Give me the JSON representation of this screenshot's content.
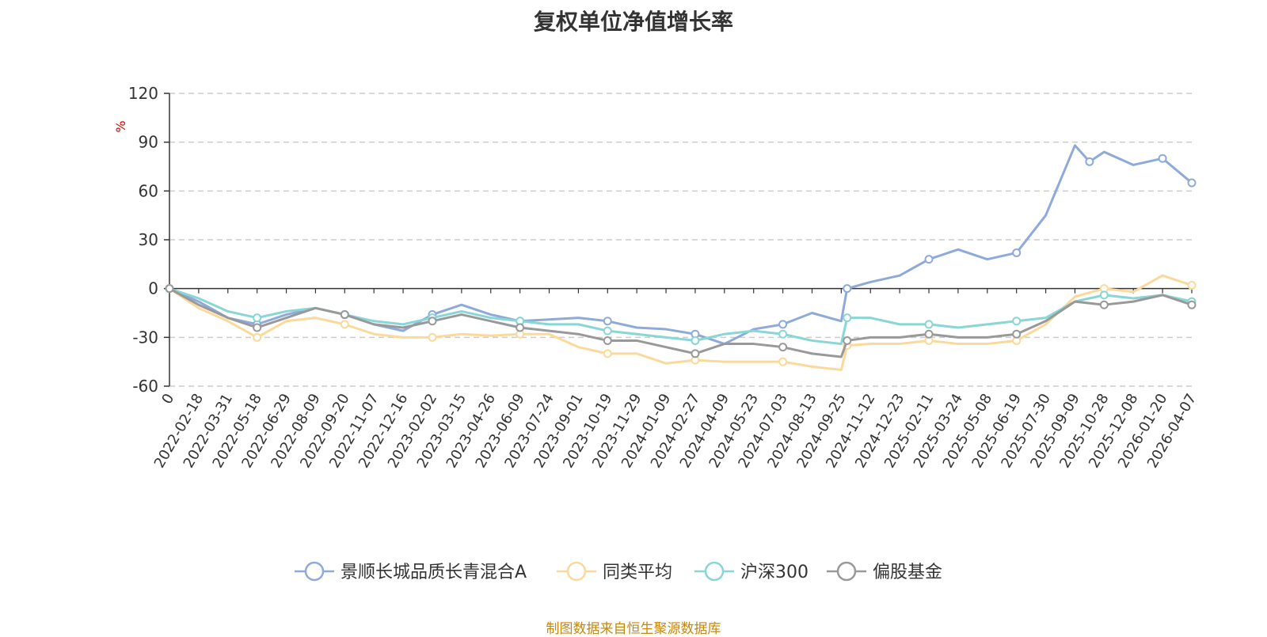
{
  "title": "复权单位净值增长率",
  "source": "制图数据来自恒生聚源数据库",
  "chart_data": {
    "type": "line",
    "y_unit": "%",
    "ylim": [
      -60,
      120
    ],
    "y_ticks": [
      "120",
      "90",
      "60",
      "30",
      "0",
      "-30",
      "-60"
    ],
    "x_tick_labels": [
      "0",
      "2022-02-18",
      "2022-03-31",
      "2022-05-18",
      "2022-06-29",
      "2022-08-09",
      "2022-09-20",
      "2022-11-07",
      "2022-12-16",
      "2023-02-02",
      "2023-03-15",
      "2023-04-26",
      "2023-06-09",
      "2023-07-24",
      "2023-09-01",
      "2023-10-19",
      "2023-11-29",
      "2024-01-09",
      "2024-02-27",
      "2024-04-09",
      "2024-05-23",
      "2024-07-03",
      "2024-08-13",
      "2024-09-25",
      "2024-11-12",
      "2024-12-23",
      "2025-02-11",
      "2025-03-24",
      "2025-05-08",
      "2025-06-19",
      "2025-07-30",
      "2025-09-09",
      "2025-10-28",
      "2025-12-08",
      "2026-01-20",
      "2026-04-07"
    ],
    "grid": "horizontal-dashed",
    "legend_position": "bottom",
    "series": [
      {
        "name": "景顺长城品质长青混合A",
        "color": "#8eaadb",
        "x": [
          0,
          1,
          2,
          3,
          4,
          5,
          6,
          7,
          8,
          9,
          10,
          11,
          12,
          13,
          14,
          15,
          16,
          17,
          18,
          19,
          20,
          21,
          22,
          23,
          23.2,
          24,
          25,
          26,
          27,
          28,
          29,
          30,
          31,
          31.5,
          32,
          33,
          34,
          35
        ],
        "values": [
          0,
          -8,
          -18,
          -22,
          -16,
          -12,
          -16,
          -22,
          -26,
          -16,
          -10,
          -16,
          -20,
          -19,
          -18,
          -20,
          -24,
          -25,
          -28,
          -34,
          -25,
          -22,
          -15,
          -20,
          0,
          4,
          8,
          18,
          24,
          18,
          22,
          45,
          88,
          78,
          84,
          76,
          80,
          65
        ]
      },
      {
        "name": "同类平均",
        "color": "#fbd99a",
        "x": [
          0,
          1,
          2,
          3,
          4,
          5,
          6,
          7,
          8,
          9,
          10,
          11,
          12,
          13,
          14,
          15,
          16,
          17,
          18,
          19,
          20,
          21,
          22,
          23,
          23.2,
          24,
          25,
          26,
          27,
          28,
          29,
          30,
          31,
          32,
          33,
          34,
          35
        ],
        "values": [
          0,
          -12,
          -20,
          -30,
          -20,
          -18,
          -22,
          -28,
          -30,
          -30,
          -28,
          -29,
          -28,
          -28,
          -36,
          -40,
          -40,
          -46,
          -44,
          -45,
          -45,
          -45,
          -48,
          -50,
          -35,
          -34,
          -34,
          -32,
          -34,
          -34,
          -32,
          -22,
          -5,
          0,
          -2,
          8,
          2
        ]
      },
      {
        "name": "沪深300",
        "color": "#88d6d6",
        "x": [
          0,
          1,
          2,
          3,
          4,
          5,
          6,
          7,
          8,
          9,
          10,
          11,
          12,
          13,
          14,
          15,
          16,
          17,
          18,
          19,
          20,
          21,
          22,
          23,
          23.2,
          24,
          25,
          26,
          27,
          28,
          29,
          30,
          31,
          32,
          33,
          34,
          35
        ],
        "values": [
          0,
          -6,
          -14,
          -18,
          -14,
          -12,
          -16,
          -20,
          -22,
          -18,
          -14,
          -18,
          -20,
          -22,
          -22,
          -26,
          -28,
          -30,
          -32,
          -28,
          -26,
          -28,
          -32,
          -34,
          -18,
          -18,
          -22,
          -22,
          -24,
          -22,
          -20,
          -18,
          -8,
          -4,
          -6,
          -4,
          -8
        ]
      },
      {
        "name": "偏股基金",
        "color": "#999999",
        "x": [
          0,
          1,
          2,
          3,
          4,
          5,
          6,
          7,
          8,
          9,
          10,
          11,
          12,
          13,
          14,
          15,
          16,
          17,
          18,
          19,
          20,
          21,
          22,
          23,
          23.2,
          24,
          25,
          26,
          27,
          28,
          29,
          30,
          31,
          32,
          33,
          34,
          35
        ],
        "values": [
          0,
          -10,
          -18,
          -24,
          -18,
          -12,
          -16,
          -22,
          -24,
          -20,
          -16,
          -20,
          -24,
          -26,
          -28,
          -32,
          -32,
          -36,
          -40,
          -34,
          -34,
          -36,
          -40,
          -42,
          -32,
          -30,
          -30,
          -28,
          -30,
          -30,
          -28,
          -20,
          -8,
          -10,
          -8,
          -4,
          -10
        ]
      }
    ]
  }
}
